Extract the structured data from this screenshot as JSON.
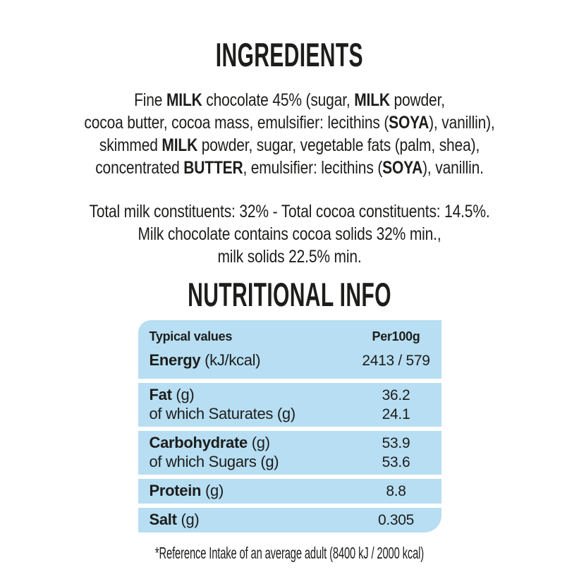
{
  "page": {
    "background": "#ffffff",
    "text_color": "#1d1d1b",
    "panel_color": "#b7def2"
  },
  "ingredients": {
    "title": "INGREDIENTS",
    "lines": [
      {
        "segments": [
          "Fine ",
          "MILK",
          " chocolate 45% (sugar, ",
          "MILK",
          " powder,"
        ]
      },
      {
        "segments": [
          "cocoa butter, cocoa mass, emulsifier: lecithins (",
          "SOYA",
          "), vanillin),"
        ]
      },
      {
        "segments": [
          "skimmed ",
          "MILK",
          " powder, sugar, vegetable fats (palm, shea),"
        ]
      },
      {
        "segments": [
          "concentrated ",
          "BUTTER",
          ", emulsifier: lecithins (",
          "SOYA",
          "), vanillin."
        ]
      }
    ]
  },
  "constituents": {
    "lines": [
      "Total milk constituents: 32% - Total cocoa constituents: 14.5%.",
      "Milk chocolate contains cocoa solids 32% min.,",
      "milk solids 22.5% min."
    ]
  },
  "nutrition": {
    "title": "NUTRITIONAL INFO",
    "header": {
      "label": "Typical values",
      "value": "Per100g"
    },
    "blocks": [
      {
        "rows": [
          {
            "bold": "Energy",
            "rest": " (kJ/kcal)",
            "value": "2413 / 579"
          }
        ]
      },
      {
        "rows": [
          {
            "bold": "Fat",
            "rest": " (g)",
            "value": "36.2"
          },
          {
            "bold": "",
            "rest": "of which Saturates (g)",
            "value": "24.1"
          }
        ]
      },
      {
        "rows": [
          {
            "bold": "Carbohydrate",
            "rest": " (g)",
            "value": "53.9"
          },
          {
            "bold": "",
            "rest": "of which Sugars (g)",
            "value": "53.6"
          }
        ]
      },
      {
        "rows": [
          {
            "bold": "Protein",
            "rest": " (g)",
            "value": "8.8"
          }
        ]
      },
      {
        "rows": [
          {
            "bold": "Salt",
            "rest": " (g)",
            "value": "0.305"
          }
        ]
      }
    ],
    "footnote": "*Reference Intake of an average adult (8400 kJ / 2000 kcal)"
  }
}
